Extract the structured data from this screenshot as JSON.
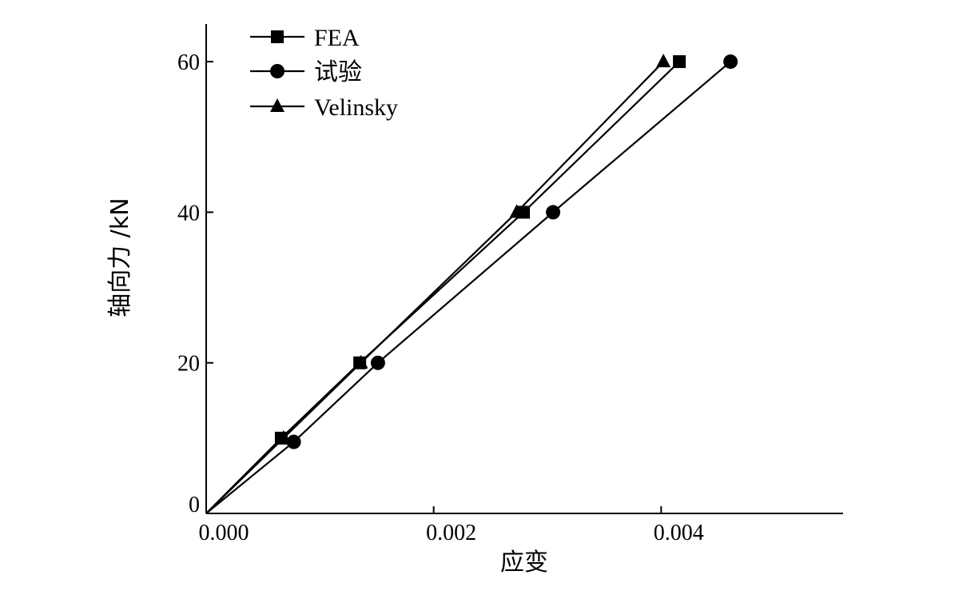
{
  "chart_data": {
    "type": "line",
    "xlabel": "应变",
    "ylabel": "轴向力 /kN",
    "xlim": [
      0,
      0.0056
    ],
    "ylim": [
      0,
      65
    ],
    "x_ticks": [
      0,
      0.002,
      0.004
    ],
    "x_tick_labels": [
      "0.000",
      "0.002",
      "0.004"
    ],
    "y_ticks": [
      0,
      20,
      40,
      60
    ],
    "y_tick_labels": [
      "0",
      "20",
      "40",
      "60"
    ],
    "grid": false,
    "legend_position": "top-left",
    "series": [
      {
        "name": "FEA",
        "marker": "square",
        "color": "#000000",
        "points": [
          [
            0,
            0
          ],
          [
            0.00066,
            10
          ],
          [
            0.00135,
            20
          ],
          [
            0.00279,
            40
          ],
          [
            0.00416,
            60
          ]
        ]
      },
      {
        "name": "试验",
        "marker": "circle",
        "color": "#000000",
        "points": [
          [
            0,
            0
          ],
          [
            0.00077,
            9.5
          ],
          [
            0.00151,
            20
          ],
          [
            0.00305,
            40
          ],
          [
            0.00461,
            60
          ]
        ]
      },
      {
        "name": "Velinsky",
        "marker": "triangle",
        "color": "#000000",
        "points": [
          [
            0,
            0
          ],
          [
            0.00068,
            10
          ],
          [
            0.00136,
            20
          ],
          [
            0.00273,
            40
          ],
          [
            0.00402,
            60
          ]
        ]
      }
    ]
  }
}
